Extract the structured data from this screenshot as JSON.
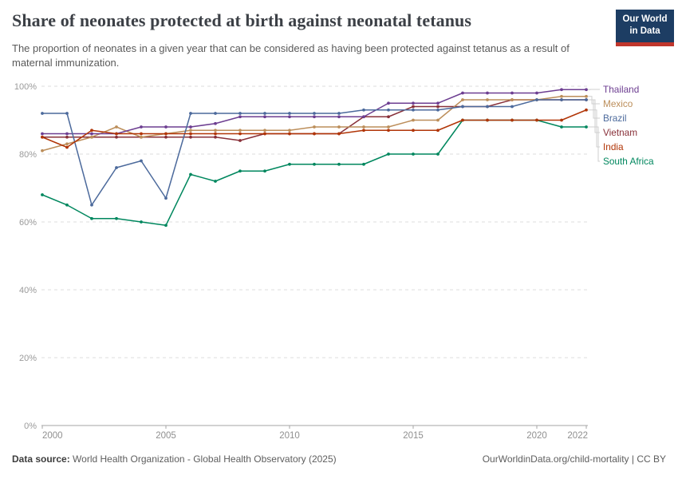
{
  "header": {
    "title": "Share of neonates protected at birth against neonatal tetanus",
    "subtitle": "The proportion of neonates in a given year that can be considered as having been protected against tetanus as a result of maternal immunization.",
    "logo_line1": "Our World",
    "logo_line2": "in Data",
    "logo_bg": "#1d3d63",
    "logo_accent": "#c0362c"
  },
  "chart_data": {
    "type": "line",
    "x": [
      2000,
      2001,
      2002,
      2003,
      2004,
      2005,
      2006,
      2007,
      2008,
      2009,
      2010,
      2011,
      2012,
      2013,
      2014,
      2015,
      2016,
      2017,
      2018,
      2019,
      2020,
      2021,
      2022
    ],
    "series": [
      {
        "name": "Thailand",
        "color": "#6D3E91",
        "values": [
          86,
          86,
          86,
          86,
          88,
          88,
          88,
          89,
          91,
          91,
          91,
          91,
          91,
          91,
          95,
          95,
          95,
          98,
          98,
          98,
          98,
          99,
          99
        ]
      },
      {
        "name": "Mexico",
        "color": "#BC8E5A",
        "values": [
          81,
          83,
          85,
          88,
          85,
          86,
          87,
          87,
          87,
          87,
          87,
          88,
          88,
          88,
          88,
          90,
          90,
          96,
          96,
          96,
          96,
          97,
          97
        ]
      },
      {
        "name": "Brazil",
        "color": "#4C6A9C",
        "values": [
          92,
          92,
          65,
          76,
          78,
          67,
          92,
          92,
          92,
          92,
          92,
          92,
          92,
          93,
          93,
          93,
          93,
          94,
          94,
          94,
          96,
          96,
          96
        ]
      },
      {
        "name": "Vietnam",
        "color": "#883039",
        "values": [
          85,
          85,
          85,
          85,
          85,
          85,
          85,
          85,
          84,
          86,
          86,
          86,
          86,
          91,
          91,
          94,
          94,
          94,
          94,
          96,
          96,
          96,
          96
        ]
      },
      {
        "name": "India",
        "color": "#B13507",
        "values": [
          85,
          82,
          87,
          86,
          86,
          86,
          86,
          86,
          86,
          86,
          86,
          86,
          86,
          87,
          87,
          87,
          87,
          90,
          90,
          90,
          90,
          90,
          93
        ]
      },
      {
        "name": "South Africa",
        "color": "#00875E",
        "values": [
          68,
          65,
          61,
          61,
          60,
          59,
          74,
          72,
          75,
          75,
          77,
          77,
          77,
          77,
          80,
          80,
          80,
          90,
          90,
          90,
          90,
          88,
          88
        ]
      }
    ],
    "draw_order": [
      "South Africa",
      "Vietnam",
      "Mexico",
      "Thailand",
      "Brazil",
      "India"
    ],
    "title": "Share of neonates protected at birth against neonatal tetanus",
    "xlabel": "",
    "ylabel": "",
    "ylim": [
      0,
      100
    ],
    "y_ticks": [
      0,
      20,
      40,
      60,
      80,
      100
    ],
    "y_tick_suffix": "%",
    "x_ticks": [
      2000,
      2005,
      2010,
      2015,
      2020,
      2022
    ],
    "grid": "horizontal-dashed",
    "legend_position": "right",
    "axis_color": "#a5a5a5",
    "grid_color": "#dddddd",
    "tick_label_color": "#8f8f8f",
    "connector_color": "#cfcfcf"
  },
  "footer": {
    "source_label": "Data source:",
    "source_text": " World Health Organization - Global Health Observatory (2025)",
    "right_text": "OurWorldinData.org/child-mortality | CC BY"
  }
}
